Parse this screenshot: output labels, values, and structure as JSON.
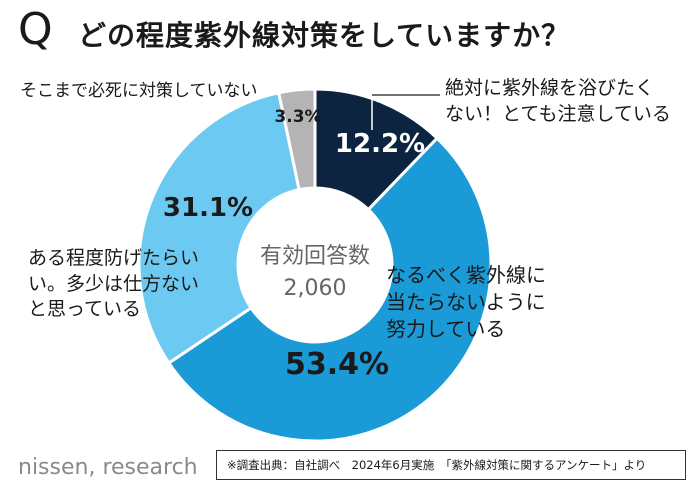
{
  "title_mark": "Q",
  "title": "どの程度紫外線対策をしていますか？",
  "chart_data": {
    "type": "pie",
    "title": "どの程度紫外線対策をしていますか？",
    "center_label": "有効回答数",
    "center_value": "2,060",
    "slices": [
      {
        "label": "絶対に紫外線を浴びたくない！とても注意している",
        "value": 12.2,
        "value_label": "12.2%",
        "color": "#0d2440"
      },
      {
        "label": "なるべく紫外線に当たらないように努力している",
        "value": 53.4,
        "value_label": "53.4%",
        "color": "#1a9ad6"
      },
      {
        "label": "ある程度防げたらいい。多少は仕方ないと思っている",
        "value": 31.1,
        "value_label": "31.1%",
        "color": "#6ccaf2"
      },
      {
        "label": "そこまで必死に対策していない",
        "value": 3.3,
        "value_label": "3.3%",
        "color": "#b4b4b4"
      }
    ]
  },
  "labels": {
    "slice0": "絶対に紫外線を浴びたく\nない！とても注意している",
    "slice1": "なるべく紫外線に\n当たらないように\n努力している",
    "slice2": "ある程度防げたらい\nい。多少は仕方ない\nと思っている",
    "slice3": "そこまで必死に対策していない"
  },
  "footer": {
    "logo": "nissen, research",
    "source": "※調査出典：自社調べ　2024年6月実施　「紫外線対策に関するアンケート」より"
  }
}
